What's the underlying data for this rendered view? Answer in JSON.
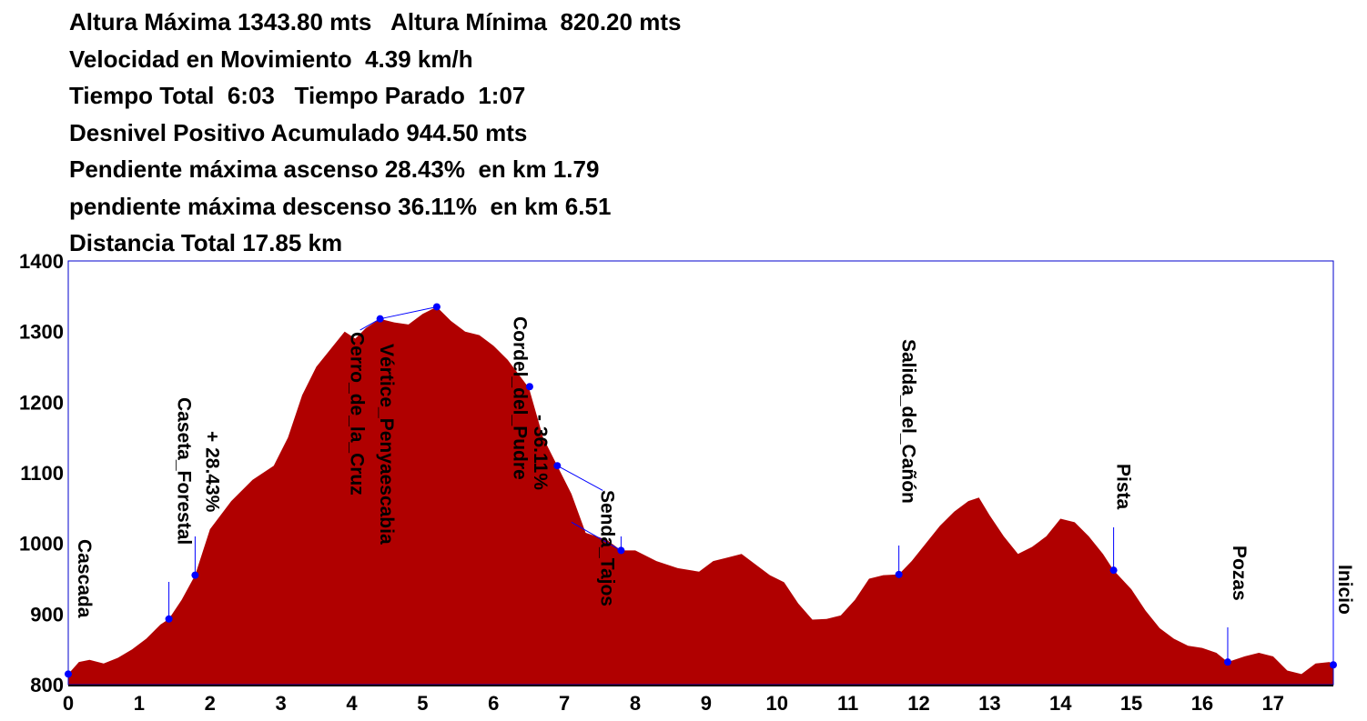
{
  "stats": [
    "Altura Máxima 1343.80 mts   Altura Mínima  820.20 mts",
    "Velocidad en Movimiento  4.39 km/h",
    "Tiempo Total  6:03   Tiempo Parado  1:07",
    "Desnivel Positivo Acumulado 944.50 mts",
    "Pendiente máxima ascenso 28.43%  en km 1.79",
    "pendiente máxima descenso 36.11%  en km 6.51",
    "Distancia Total 17.85 km"
  ],
  "chart_data": {
    "type": "area",
    "title": "",
    "xlabel": "",
    "ylabel": "",
    "xlim": [
      0,
      17.85
    ],
    "ylim": [
      800,
      1400
    ],
    "grid": false,
    "colors": {
      "fill": "#b00000",
      "frame": "#0000cc",
      "waypoint": "#0000ff"
    },
    "x_ticks": [
      0,
      1,
      2,
      3,
      4,
      5,
      6,
      7,
      8,
      9,
      10,
      11,
      12,
      13,
      14,
      15,
      16,
      17
    ],
    "y_ticks": [
      800,
      900,
      1000,
      1100,
      1200,
      1300,
      1400
    ],
    "series": [
      {
        "x": [
          0,
          0.15,
          0.3,
          0.5,
          0.7,
          0.9,
          1.1,
          1.3,
          1.42,
          1.6,
          1.79,
          2.0,
          2.3,
          2.6,
          2.9,
          3.1,
          3.3,
          3.5,
          3.7,
          3.9,
          4.05,
          4.2,
          4.4,
          4.6,
          4.8,
          5.0,
          5.2,
          5.4,
          5.6,
          5.8,
          6.0,
          6.2,
          6.5,
          6.7,
          6.9,
          7.1,
          7.3,
          7.6,
          7.8,
          8.0,
          8.3,
          8.6,
          8.9,
          9.1,
          9.3,
          9.5,
          9.7,
          9.9,
          10.1,
          10.3,
          10.5,
          10.7,
          10.9,
          11.1,
          11.3,
          11.5,
          11.72,
          11.9,
          12.1,
          12.3,
          12.5,
          12.7,
          12.85,
          13.0,
          13.2,
          13.4,
          13.6,
          13.8,
          14.0,
          14.2,
          14.4,
          14.6,
          14.75,
          15.0,
          15.2,
          15.4,
          15.6,
          15.8,
          16.0,
          16.2,
          16.36,
          16.6,
          16.8,
          17.0,
          17.2,
          17.4,
          17.6,
          17.8,
          17.85
        ],
        "y": [
          815,
          832,
          835,
          830,
          838,
          850,
          865,
          885,
          893,
          920,
          955,
          1020,
          1060,
          1090,
          1110,
          1150,
          1210,
          1250,
          1275,
          1300,
          1290,
          1305,
          1318,
          1313,
          1310,
          1325,
          1335,
          1315,
          1300,
          1295,
          1280,
          1260,
          1220,
          1150,
          1110,
          1070,
          1015,
          1005,
          990,
          990,
          975,
          965,
          960,
          975,
          980,
          985,
          970,
          955,
          945,
          915,
          892,
          893,
          898,
          920,
          950,
          955,
          956,
          975,
          1000,
          1025,
          1045,
          1060,
          1065,
          1040,
          1010,
          985,
          995,
          1010,
          1035,
          1030,
          1010,
          985,
          962,
          935,
          905,
          880,
          865,
          855,
          852,
          845,
          832,
          840,
          845,
          840,
          820,
          815,
          830,
          832,
          825
        ]
      }
    ],
    "waypoints": [
      {
        "km": 0.0,
        "alt": 815,
        "label": "Cascada"
      },
      {
        "km": 1.42,
        "alt": 893,
        "label": "Caseta_Forestal"
      },
      {
        "km": 1.79,
        "alt": 955,
        "label": "+ 28.43%"
      },
      {
        "km": 4.4,
        "alt": 1318,
        "label": "Cerro_de_la_Cruz"
      },
      {
        "km": 5.2,
        "alt": 1335,
        "label": "Vértice_Penyaescabia"
      },
      {
        "km": 6.51,
        "alt": 1222,
        "label": "- 36.11%"
      },
      {
        "km": 6.9,
        "alt": 1110,
        "label": "Cordel_del_Pudre"
      },
      {
        "km": 7.8,
        "alt": 990,
        "label": "Senda_Tajos"
      },
      {
        "km": 11.72,
        "alt": 956,
        "label": "Salida_del_Cañón"
      },
      {
        "km": 14.75,
        "alt": 962,
        "label": "Pista"
      },
      {
        "km": 16.36,
        "alt": 832,
        "label": "Pozas"
      },
      {
        "km": 17.85,
        "alt": 828,
        "label": "Inicio"
      }
    ]
  }
}
